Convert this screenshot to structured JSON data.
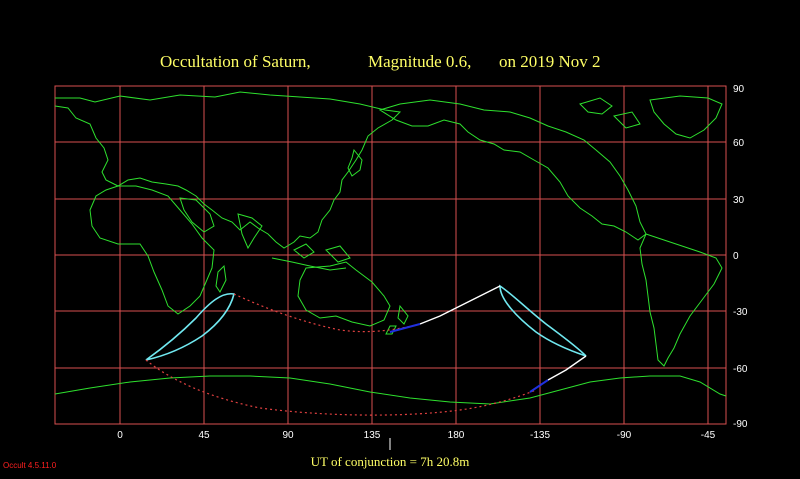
{
  "title": {
    "object": "Occultation  of  Saturn,",
    "magnitude": "Magnitude 0.6,",
    "date": "on  2019 Nov  2"
  },
  "axes": {
    "lon_ticks": [
      "0",
      "45",
      "90",
      "135",
      "180",
      "-135",
      "-90",
      "-45"
    ],
    "lat_ticks": [
      "90",
      "60",
      "30",
      "0",
      "-30",
      "-60",
      "-90"
    ]
  },
  "conjunction": "UT of conjunction =  7h 20.8m",
  "version": "Occult 4.5.11.0",
  "colors": {
    "background": "#000000",
    "grid": "#D85050",
    "coast": "#2EE02E",
    "limit": "#70E8F0",
    "center": "#E04040",
    "track": "#FFFFFF",
    "track_dark": "#2030E0",
    "title": "#FFFF66",
    "ticks": "#FFFFFF",
    "version": "#FF2020"
  }
}
